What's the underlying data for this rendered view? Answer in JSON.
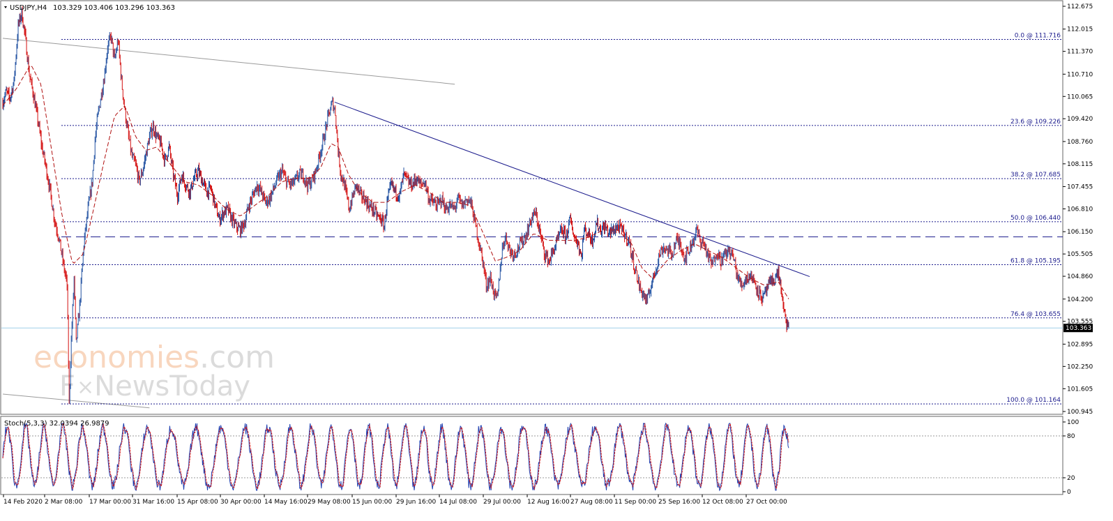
{
  "header": {
    "symbol_tf": "USDJPY,H4",
    "ohlc": "103.329 103.406 103.296 103.363"
  },
  "watermark": {
    "brand_a": "economies",
    "brand_b": ".com",
    "brand_c_pre": "F",
    "brand_c_post": "NewsToday"
  },
  "colors": {
    "bull": "#1f4fa0",
    "bear": "#d41010",
    "ma": "#b01010",
    "fib": "#1a1a8c",
    "trend": "#1a1a8c",
    "channel": "#9a9a9a",
    "price_line": "#9fd0e8",
    "stoch_main": "#1f3fb0",
    "stoch_signal": "#d41010"
  },
  "chart_data": [
    {
      "type": "line",
      "title": "USDJPY,H4",
      "ylim": [
        100.945,
        112.675
      ],
      "y_ticks": [
        "112.675",
        "112.015",
        "111.370",
        "110.710",
        "110.065",
        "109.420",
        "108.760",
        "108.115",
        "107.455",
        "106.810",
        "106.150",
        "105.505",
        "104.860",
        "104.200",
        "103.555",
        "102.895",
        "102.250",
        "101.605",
        "100.945"
      ],
      "x_ticks": [
        "14 Feb 2020",
        "2 Mar 08:00",
        "17 Mar 00:00",
        "31 Mar 16:00",
        "15 Apr 08:00",
        "30 Apr 00:00",
        "14 May 16:00",
        "29 May 08:00",
        "15 Jun 00:00",
        "29 Jun 16:00",
        "14 Jul 08:00",
        "29 Jul 00:00",
        "12 Aug 16:00",
        "27 Aug 08:00",
        "11 Sep 00:00",
        "25 Sep 16:00",
        "12 Oct 08:00",
        "27 Oct 00:00"
      ],
      "current_price": "103.363",
      "price_path": [
        [
          0,
          109.9
        ],
        [
          5,
          110.2
        ],
        [
          10,
          110.0
        ],
        [
          16,
          110.5
        ],
        [
          22,
          112.1
        ],
        [
          27,
          112.5
        ],
        [
          32,
          111.8
        ],
        [
          38,
          110.7
        ],
        [
          44,
          110.1
        ],
        [
          50,
          109.4
        ],
        [
          56,
          108.6
        ],
        [
          62,
          108.0
        ],
        [
          68,
          107.3
        ],
        [
          74,
          106.5
        ],
        [
          80,
          106.0
        ],
        [
          86,
          105.3
        ],
        [
          92,
          104.6
        ],
        [
          95,
          101.2
        ],
        [
          98,
          103.0
        ],
        [
          102,
          104.8
        ],
        [
          105,
          102.9
        ],
        [
          110,
          104.0
        ],
        [
          116,
          105.8
        ],
        [
          122,
          106.8
        ],
        [
          128,
          107.6
        ],
        [
          132,
          108.8
        ],
        [
          136,
          109.5
        ],
        [
          140,
          110.0
        ],
        [
          145,
          110.6
        ],
        [
          150,
          111.5
        ],
        [
          155,
          111.8
        ],
        [
          160,
          111.1
        ],
        [
          165,
          111.7
        ],
        [
          170,
          110.5
        ],
        [
          175,
          109.6
        ],
        [
          180,
          108.9
        ],
        [
          185,
          108.3
        ],
        [
          190,
          108.1
        ],
        [
          195,
          107.6
        ],
        [
          200,
          107.9
        ],
        [
          205,
          108.4
        ],
        [
          210,
          108.9
        ],
        [
          215,
          109.2
        ],
        [
          220,
          108.9
        ],
        [
          226,
          108.7
        ],
        [
          232,
          108.2
        ],
        [
          238,
          108.6
        ],
        [
          244,
          107.8
        ],
        [
          250,
          107.2
        ],
        [
          256,
          107.8
        ],
        [
          262,
          107.5
        ],
        [
          268,
          107.3
        ],
        [
          274,
          107.7
        ],
        [
          280,
          107.9
        ],
        [
          286,
          107.6
        ],
        [
          292,
          107.3
        ],
        [
          298,
          107.4
        ],
        [
          304,
          106.9
        ],
        [
          310,
          106.5
        ],
        [
          316,
          106.7
        ],
        [
          322,
          106.8
        ],
        [
          328,
          106.5
        ],
        [
          334,
          106.3
        ],
        [
          340,
          106.2
        ],
        [
          346,
          106.4
        ],
        [
          352,
          106.9
        ],
        [
          358,
          107.2
        ],
        [
          364,
          107.5
        ],
        [
          370,
          107.3
        ],
        [
          376,
          107.0
        ],
        [
          382,
          107.1
        ],
        [
          388,
          107.4
        ],
        [
          394,
          107.7
        ],
        [
          400,
          107.9
        ],
        [
          406,
          107.6
        ],
        [
          412,
          107.5
        ],
        [
          418,
          107.6
        ],
        [
          424,
          107.8
        ],
        [
          430,
          107.8
        ],
        [
          436,
          107.5
        ],
        [
          442,
          107.6
        ],
        [
          448,
          107.9
        ],
        [
          454,
          108.4
        ],
        [
          460,
          108.9
        ],
        [
          466,
          109.5
        ],
        [
          472,
          109.9
        ],
        [
          476,
          109.6
        ],
        [
          480,
          108.5
        ],
        [
          484,
          107.8
        ],
        [
          488,
          107.6
        ],
        [
          492,
          107.2
        ],
        [
          496,
          106.8
        ],
        [
          500,
          107.1
        ],
        [
          506,
          107.5
        ],
        [
          512,
          107.2
        ],
        [
          518,
          107.1
        ],
        [
          524,
          106.9
        ],
        [
          530,
          106.8
        ],
        [
          536,
          106.6
        ],
        [
          542,
          106.5
        ],
        [
          546,
          106.3
        ],
        [
          550,
          107.0
        ],
        [
          556,
          107.5
        ],
        [
          562,
          107.3
        ],
        [
          568,
          107.2
        ],
        [
          574,
          107.8
        ],
        [
          580,
          107.6
        ],
        [
          586,
          107.5
        ],
        [
          592,
          107.7
        ],
        [
          598,
          107.5
        ],
        [
          604,
          107.6
        ],
        [
          610,
          107.1
        ],
        [
          616,
          107.0
        ],
        [
          622,
          106.9
        ],
        [
          628,
          107.1
        ],
        [
          634,
          106.8
        ],
        [
          640,
          106.9
        ],
        [
          646,
          106.8
        ],
        [
          652,
          107.1
        ],
        [
          658,
          106.9
        ],
        [
          664,
          107.1
        ],
        [
          670,
          107.0
        ],
        [
          676,
          106.4
        ],
        [
          680,
          106.0
        ],
        [
          684,
          105.6
        ],
        [
          688,
          105.2
        ],
        [
          692,
          104.6
        ],
        [
          698,
          104.8
        ],
        [
          704,
          104.3
        ],
        [
          708,
          104.2
        ],
        [
          712,
          105.1
        ],
        [
          716,
          105.8
        ],
        [
          720,
          106.0
        ],
        [
          726,
          105.6
        ],
        [
          732,
          105.5
        ],
        [
          738,
          105.7
        ],
        [
          744,
          105.9
        ],
        [
          750,
          106.1
        ],
        [
          756,
          106.5
        ],
        [
          762,
          106.7
        ],
        [
          766,
          106.4
        ],
        [
          770,
          106.0
        ],
        [
          776,
          105.5
        ],
        [
          782,
          105.3
        ],
        [
          788,
          105.6
        ],
        [
          794,
          105.9
        ],
        [
          800,
          106.2
        ],
        [
          806,
          106.0
        ],
        [
          812,
          106.5
        ],
        [
          818,
          106.0
        ],
        [
          824,
          105.8
        ],
        [
          828,
          105.4
        ],
        [
          832,
          106.2
        ],
        [
          838,
          106.1
        ],
        [
          844,
          105.9
        ],
        [
          850,
          106.4
        ],
        [
          856,
          106.2
        ],
        [
          862,
          106.3
        ],
        [
          868,
          106.1
        ],
        [
          874,
          106.2
        ],
        [
          880,
          106.3
        ],
        [
          886,
          106.2
        ],
        [
          892,
          106.0
        ],
        [
          896,
          105.9
        ],
        [
          900,
          105.5
        ],
        [
          906,
          105.0
        ],
        [
          912,
          104.5
        ],
        [
          918,
          104.3
        ],
        [
          922,
          104.1
        ],
        [
          928,
          104.6
        ],
        [
          934,
          105.0
        ],
        [
          940,
          105.5
        ],
        [
          946,
          105.7
        ],
        [
          952,
          105.6
        ],
        [
          958,
          105.5
        ],
        [
          964,
          105.9
        ],
        [
          970,
          105.8
        ],
        [
          976,
          105.4
        ],
        [
          982,
          105.6
        ],
        [
          988,
          105.9
        ],
        [
          994,
          106.2
        ],
        [
          998,
          105.9
        ],
        [
          1004,
          105.8
        ],
        [
          1010,
          105.4
        ],
        [
          1016,
          105.2
        ],
        [
          1022,
          105.6
        ],
        [
          1028,
          105.3
        ],
        [
          1034,
          105.5
        ],
        [
          1040,
          105.6
        ],
        [
          1046,
          105.4
        ],
        [
          1052,
          104.8
        ],
        [
          1058,
          104.6
        ],
        [
          1064,
          104.8
        ],
        [
          1070,
          104.9
        ],
        [
          1076,
          104.7
        ],
        [
          1082,
          104.4
        ],
        [
          1088,
          104.2
        ],
        [
          1094,
          104.5
        ],
        [
          1100,
          104.7
        ],
        [
          1106,
          104.8
        ],
        [
          1110,
          105.0
        ],
        [
          1114,
          104.5
        ],
        [
          1118,
          103.8
        ],
        [
          1122,
          103.5
        ],
        [
          1125,
          103.3
        ]
      ],
      "moving_average": [
        [
          0,
          109.8
        ],
        [
          20,
          110.3
        ],
        [
          40,
          111.0
        ],
        [
          55,
          110.4
        ],
        [
          70,
          108.5
        ],
        [
          85,
          106.6
        ],
        [
          100,
          105.2
        ],
        [
          115,
          105.5
        ],
        [
          130,
          106.8
        ],
        [
          145,
          108.2
        ],
        [
          160,
          109.5
        ],
        [
          175,
          109.8
        ],
        [
          190,
          108.9
        ],
        [
          205,
          108.5
        ],
        [
          220,
          108.6
        ],
        [
          240,
          108.1
        ],
        [
          260,
          107.6
        ],
        [
          280,
          107.5
        ],
        [
          300,
          107.2
        ],
        [
          320,
          106.8
        ],
        [
          340,
          106.6
        ],
        [
          360,
          106.9
        ],
        [
          380,
          107.2
        ],
        [
          400,
          107.6
        ],
        [
          420,
          107.7
        ],
        [
          440,
          107.7
        ],
        [
          455,
          108.0
        ],
        [
          470,
          108.7
        ],
        [
          480,
          108.6
        ],
        [
          495,
          107.8
        ],
        [
          510,
          107.3
        ],
        [
          530,
          107.0
        ],
        [
          550,
          107.0
        ],
        [
          570,
          107.3
        ],
        [
          590,
          107.5
        ],
        [
          610,
          107.3
        ],
        [
          630,
          107.0
        ],
        [
          650,
          107.0
        ],
        [
          670,
          106.9
        ],
        [
          690,
          106.0
        ],
        [
          705,
          105.3
        ],
        [
          720,
          105.4
        ],
        [
          740,
          105.6
        ],
        [
          760,
          106.1
        ],
        [
          780,
          105.9
        ],
        [
          800,
          105.9
        ],
        [
          820,
          105.9
        ],
        [
          840,
          106.0
        ],
        [
          860,
          106.2
        ],
        [
          880,
          106.2
        ],
        [
          900,
          105.8
        ],
        [
          915,
          105.1
        ],
        [
          930,
          104.8
        ],
        [
          950,
          105.3
        ],
        [
          970,
          105.6
        ],
        [
          990,
          105.8
        ],
        [
          1010,
          105.6
        ],
        [
          1030,
          105.4
        ],
        [
          1050,
          105.1
        ],
        [
          1070,
          104.8
        ],
        [
          1090,
          104.6
        ],
        [
          1110,
          104.7
        ],
        [
          1125,
          104.2
        ]
      ],
      "fibonacci": [
        {
          "label": "0.0 @ 111.716",
          "value": 111.716
        },
        {
          "label": "23.6 @ 109.226",
          "value": 109.226
        },
        {
          "label": "38.2 @ 107.685",
          "value": 107.685
        },
        {
          "label": "50.0 @ 106.440",
          "value": 106.44
        },
        {
          "label": "61.8 @ 105.195",
          "value": 105.195
        },
        {
          "label": "76.4 @ 103.655",
          "value": 103.655
        },
        {
          "label": "100.0 @ 101.164",
          "value": 101.164
        }
      ],
      "support_level": 106.0,
      "trendline": [
        [
          475,
          109.9
        ],
        [
          1155,
          104.85
        ]
      ],
      "channel_upper": [
        [
          0,
          111.75
        ],
        [
          647,
          110.42
        ]
      ],
      "channel_lower": [
        [
          0,
          101.45
        ],
        [
          210,
          101.05
        ]
      ]
    },
    {
      "type": "line",
      "title": "Stoch(5,3,3) 32.0394 26.9879",
      "ylim": [
        0,
        100
      ],
      "y_ticks": [
        "100",
        "80",
        "20",
        "0"
      ],
      "levels": [
        80,
        20
      ],
      "period": 30,
      "n_points": 1126
    }
  ]
}
